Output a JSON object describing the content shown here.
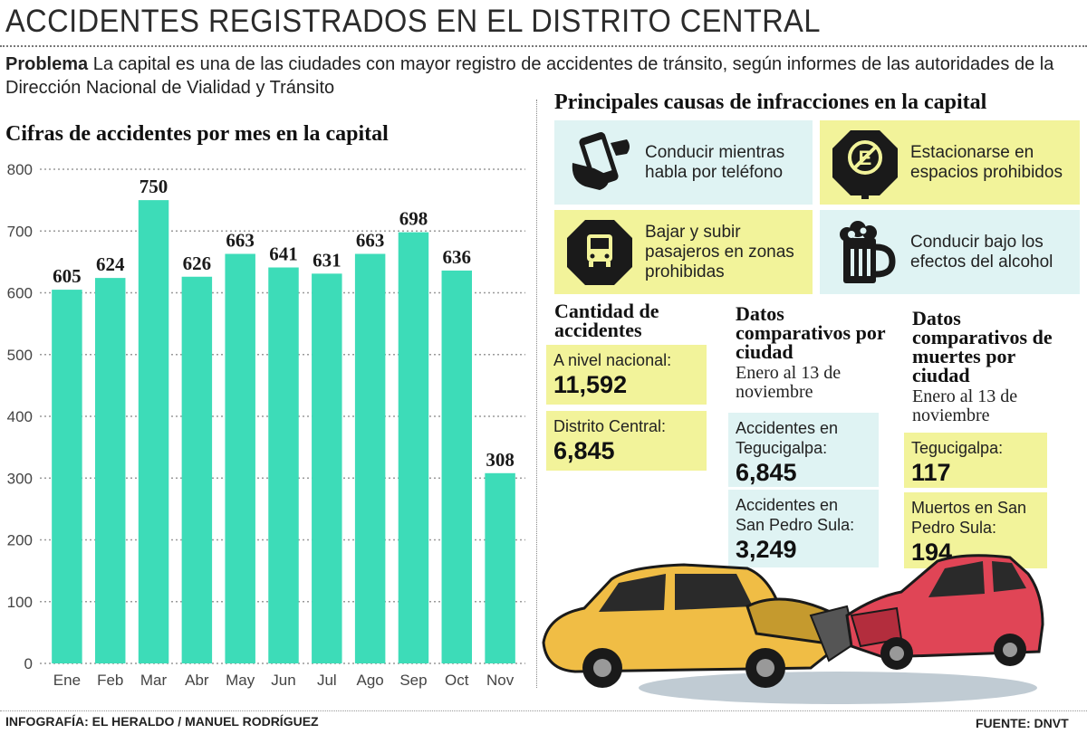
{
  "header": {
    "title": "ACCIDENTES REGISTRADOS EN EL DISTRITO CENTRAL",
    "problem_label": "Problema",
    "problem_text": " La capital es una de las ciudades con mayor registro de accidentes de tránsito, según informes de las autoridades de la Dirección Nacional de Vialidad y Tránsito"
  },
  "chart_data": {
    "type": "bar",
    "title": "Cifras de accidentes por mes en la capital",
    "categories": [
      "Ene",
      "Feb",
      "Mar",
      "Abr",
      "May",
      "Jun",
      "Jul",
      "Ago",
      "Sep",
      "Oct",
      "Nov"
    ],
    "values": [
      605,
      624,
      750,
      626,
      663,
      641,
      631,
      663,
      698,
      636,
      308
    ],
    "ylim": [
      0,
      800
    ],
    "yticks": [
      0,
      100,
      200,
      300,
      400,
      500,
      600,
      700,
      800
    ],
    "grid": true,
    "bar_color": "#3ddcb8"
  },
  "causes": {
    "title": "Principales causas de infracciones en la capital",
    "items": [
      {
        "text": "Conducir mientras habla por teléfono",
        "icon": "phone-hand-icon",
        "color": "#dff3f3"
      },
      {
        "text": "Estacionarse en espacios prohibidos",
        "icon": "no-parking-sign-icon",
        "color": "#f2f39a"
      },
      {
        "text": "Bajar y subir pasajeros en zonas prohibidas",
        "icon": "bus-sign-icon",
        "color": "#f2f39a"
      },
      {
        "text": "Conducir bajo los efectos del alcohol",
        "icon": "beer-mug-icon",
        "color": "#dff3f3"
      }
    ]
  },
  "accidents": {
    "title": "Cantidad de accidentes",
    "national_label": "A nivel nacional:",
    "national_value": "11,592",
    "central_label": "Distrito Central:",
    "central_value": "6,845"
  },
  "city_compare": {
    "title": "Datos comparativos por ciudad",
    "subtitle": "Enero al 13 de noviembre",
    "tegucigalpa_label": "Accidentes en Tegucigalpa:",
    "tegucigalpa_value": "6,845",
    "sps_label": "Accidentes en San Pedro Sula:",
    "sps_value": "3,249"
  },
  "deaths_compare": {
    "title": "Datos comparativos de muertes por ciudad",
    "subtitle": "Enero al 13 de noviembre",
    "tegucigalpa_label": "Tegucigalpa:",
    "tegucigalpa_value": "117",
    "sps_label": "Muertos en San Pedro Sula:",
    "sps_value": "194"
  },
  "footer": {
    "credit": "INFOGRAFÍA: EL HERALDO / MANUEL RODRÍGUEZ",
    "source": "FUENTE: DNVT"
  }
}
